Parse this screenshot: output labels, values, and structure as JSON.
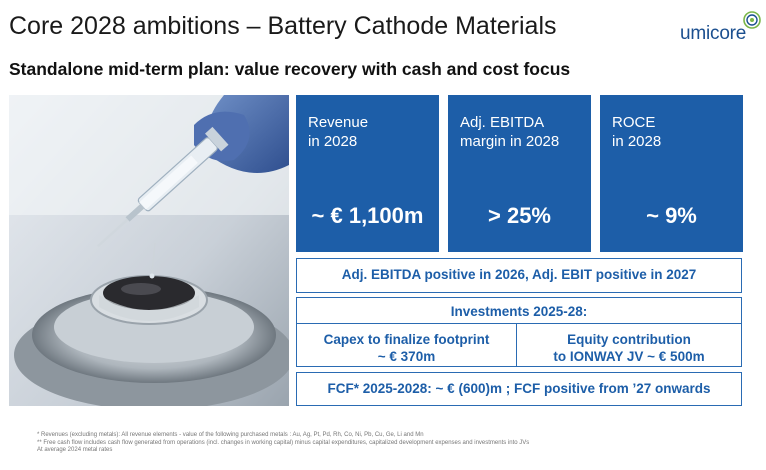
{
  "header": {
    "title": "Core 2028 ambitions – Battery Cathode Materials",
    "subtitle": "Standalone mid-term plan: value recovery with cash and cost focus",
    "logo_text": "umicore"
  },
  "kpis": [
    {
      "label": "Revenue\nin 2028",
      "value": "~ € 1,100m"
    },
    {
      "label": "Adj. EBITDA\nmargin in 2028",
      "value": "> 25%"
    },
    {
      "label": "ROCE\nin 2028",
      "value": "~ 9%"
    }
  ],
  "boxes": {
    "ebitda_line": "Adj. EBITDA positive in 2026, Adj. EBIT positive in 2027",
    "investments_head": "Investments 2025-28:",
    "capex_line1": "Capex to finalize footprint",
    "capex_line2": "~ € 370m",
    "equity_line1": "Equity contribution",
    "equity_line2": "to IONWAY JV ~ € 500m",
    "fcf_line": "FCF* 2025-2028: ~ € (600)m ; FCF positive from ’27 onwards"
  },
  "footnotes": [
    "* Revenues (excluding metals): All revenue elements - value of the following purchased metals : Au, Ag, Pt, Pd, Rh, Co, Ni, Pb, Cu, Ge, Li and Mn",
    "** Free cash flow includes cash flow generated from operations (incl. changes in working capital) minus capital expenditures, capitalized development expenses and investments into JVs",
    "At average 2024 metal rates"
  ],
  "colors": {
    "brand_blue": "#1d5ea8",
    "logo_blue": "#1b4f8f",
    "logo_green": "#7ab648"
  }
}
